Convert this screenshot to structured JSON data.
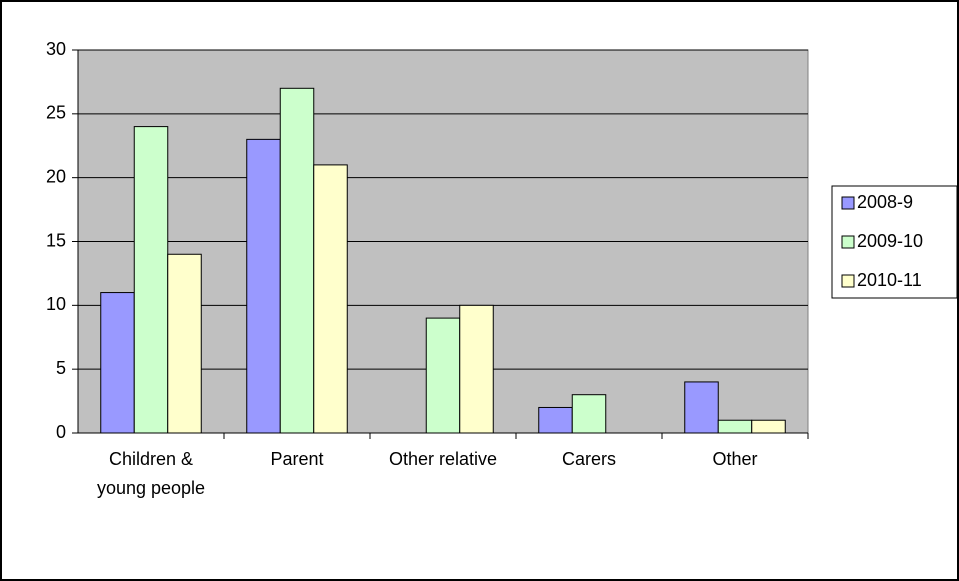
{
  "chart_data": {
    "type": "bar",
    "categories": [
      "Children & young people",
      "Parent",
      "Other relative",
      "Carers",
      "Other"
    ],
    "series": [
      {
        "name": "2008-9",
        "color": "#9999ff",
        "values": [
          11,
          23,
          0,
          2,
          4
        ]
      },
      {
        "name": "2009-10",
        "color": "#ccffcc",
        "values": [
          24,
          27,
          9,
          3,
          1
        ]
      },
      {
        "name": "2010-11",
        "color": "#ffffcc",
        "values": [
          14,
          21,
          10,
          0,
          1
        ]
      }
    ],
    "ylim": [
      0,
      30
    ],
    "yticks": [
      0,
      5,
      10,
      15,
      20,
      25,
      30
    ],
    "grid": true,
    "plot_background": "#c0c0c0",
    "legend": "right"
  }
}
